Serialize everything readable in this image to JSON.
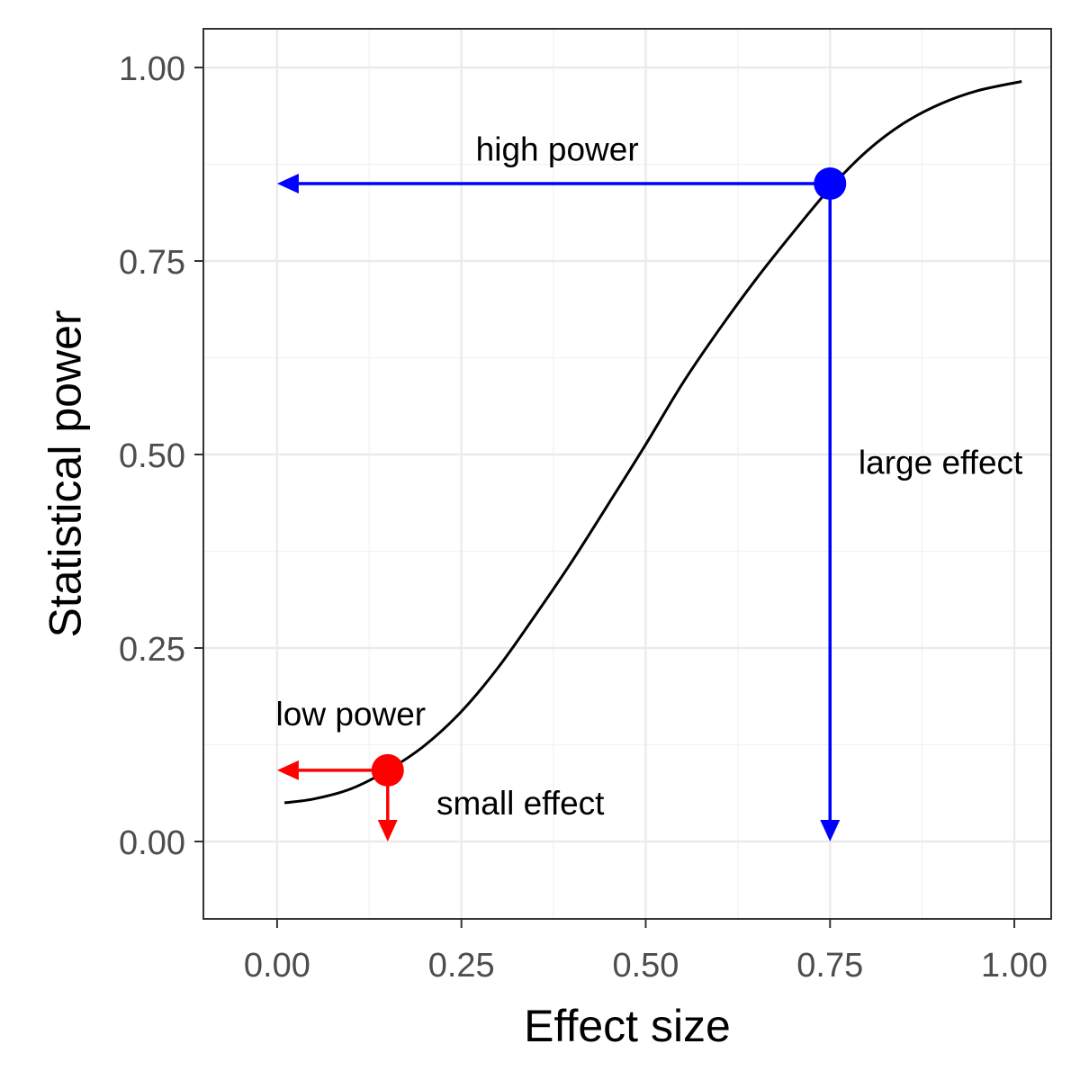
{
  "chart_data": {
    "type": "line",
    "title": "",
    "xlabel": "Effect size",
    "ylabel": "Statistical power",
    "xlim": [
      -0.1,
      1.05
    ],
    "ylim": [
      -0.1,
      1.05
    ],
    "x_ticks": [
      0,
      0.25,
      0.5,
      0.75,
      1
    ],
    "y_ticks": [
      0,
      0.25,
      0.5,
      0.75,
      1
    ],
    "x_tick_labels": [
      "0.00",
      "0.25",
      "0.50",
      "0.75",
      "1.00"
    ],
    "y_tick_labels": [
      "0.00",
      "0.25",
      "0.50",
      "0.75",
      "1.00"
    ],
    "grid": true,
    "curve": {
      "color": "#000000",
      "x": [
        0.01,
        0.05,
        0.1,
        0.15,
        0.2,
        0.25,
        0.3,
        0.35,
        0.4,
        0.45,
        0.5,
        0.55,
        0.6,
        0.65,
        0.7,
        0.75,
        0.8,
        0.85,
        0.9,
        0.95,
        1.01
      ],
      "y": [
        0.05,
        0.055,
        0.068,
        0.092,
        0.124,
        0.168,
        0.225,
        0.292,
        0.362,
        0.437,
        0.513,
        0.592,
        0.662,
        0.727,
        0.787,
        0.844,
        0.892,
        0.928,
        0.953,
        0.97,
        0.982
      ]
    },
    "points": [
      {
        "x": 0.15,
        "y": 0.092,
        "color": "#ff0000"
      },
      {
        "x": 0.75,
        "y": 0.85,
        "color": "#0000ff"
      }
    ],
    "arrows": [
      {
        "from": [
          0.15,
          0.092
        ],
        "to": [
          0.0,
          0.092
        ],
        "color": "#ff0000"
      },
      {
        "from": [
          0.15,
          0.092
        ],
        "to": [
          0.15,
          0.0
        ],
        "color": "#ff0000"
      },
      {
        "from": [
          0.75,
          0.85
        ],
        "to": [
          0.0,
          0.85
        ],
        "color": "#0000ff"
      },
      {
        "from": [
          0.75,
          0.85
        ],
        "to": [
          0.75,
          0.0
        ],
        "color": "#0000ff"
      }
    ],
    "annotations": [
      {
        "text": "low power",
        "x": 0.1,
        "y": 0.165
      },
      {
        "text": "small effect",
        "x": 0.33,
        "y": 0.05
      },
      {
        "text": "high power",
        "x": 0.38,
        "y": 0.895
      },
      {
        "text": "large effect",
        "x": 0.9,
        "y": 0.49
      }
    ]
  }
}
